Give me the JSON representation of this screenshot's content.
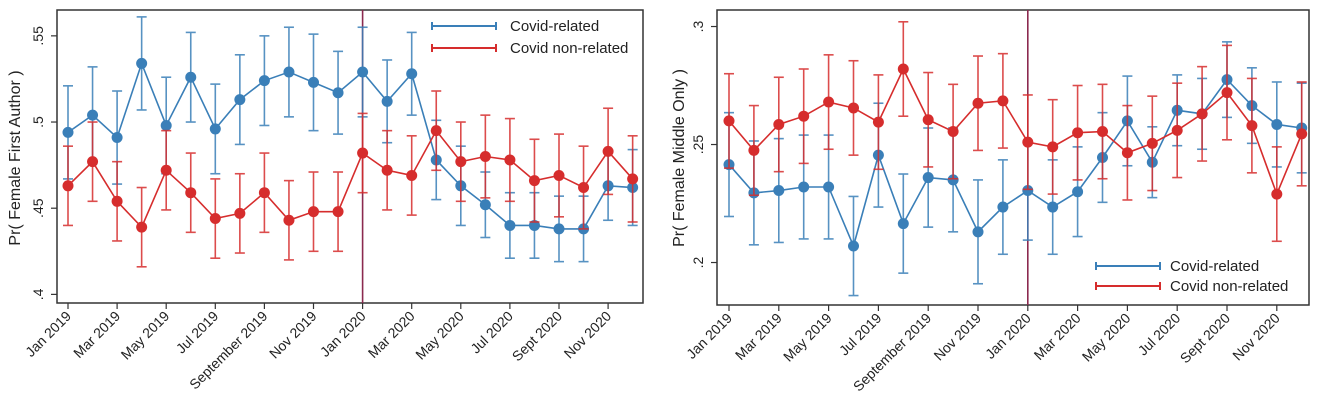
{
  "colors": {
    "covid_related": "#3a7fb8",
    "covid_non_related": "#d62d2d",
    "event_line": "#8b2a4f",
    "frame": "#333333"
  },
  "chart_data": [
    {
      "type": "line",
      "title": "",
      "xlabel": "",
      "ylabel": "Pr( Female First Author )",
      "ylim": [
        0.395,
        0.565
      ],
      "yticks": [
        0.4,
        0.45,
        0.5,
        0.55
      ],
      "ytick_labels": [
        ".4",
        ".45",
        ".5",
        ".55"
      ],
      "x": [
        "Jan 2019",
        "Feb 2019",
        "Mar 2019",
        "Apr 2019",
        "May 2019",
        "Jun 2019",
        "Jul 2019",
        "Aug 2019",
        "Sep 2019",
        "Oct 2019",
        "Nov 2019",
        "Dec 2019",
        "Jan 2020",
        "Feb 2020",
        "Mar 2020",
        "Apr 2020",
        "May 2020",
        "Jun 2020",
        "Jul 2020",
        "Aug 2020",
        "Sep 2020",
        "Oct 2020",
        "Nov 2020",
        "Dec 2020"
      ],
      "xtick_labels": [
        "Jan 2019",
        "Mar 2019",
        "May 2019",
        "Jul 2019",
        "September 2019",
        "Nov 2019",
        "Jan 2020",
        "Mar 2020",
        "May 2020",
        "Jul 2020",
        "Sept 2020",
        "Nov 2020"
      ],
      "xtick_indices": [
        0,
        2,
        4,
        6,
        8,
        10,
        12,
        14,
        16,
        18,
        20,
        22
      ],
      "event_line_at": "Jan 2020",
      "legend": {
        "position": "top-right",
        "entries": [
          "Covid-related",
          "Covid non-related"
        ]
      },
      "grid": false,
      "series": [
        {
          "name": "Covid-related",
          "values": [
            0.494,
            0.504,
            0.491,
            0.534,
            0.498,
            0.526,
            0.496,
            0.513,
            0.524,
            0.529,
            0.523,
            0.517,
            0.529,
            0.512,
            0.528,
            0.478,
            0.463,
            0.452,
            0.44,
            0.44,
            0.438,
            0.438,
            0.463,
            0.462
          ],
          "ci_half": [
            0.027,
            0.028,
            0.027,
            0.027,
            0.028,
            0.026,
            0.026,
            0.026,
            0.026,
            0.026,
            0.028,
            0.024,
            0.026,
            0.024,
            0.024,
            0.023,
            0.023,
            0.019,
            0.019,
            0.019,
            0.019,
            0.019,
            0.02,
            0.022
          ]
        },
        {
          "name": "Covid non-related",
          "values": [
            0.463,
            0.477,
            0.454,
            0.439,
            0.472,
            0.459,
            0.444,
            0.447,
            0.459,
            0.443,
            0.448,
            0.448,
            0.482,
            0.472,
            0.469,
            0.495,
            0.477,
            0.48,
            0.478,
            0.466,
            0.469,
            0.462,
            0.483,
            0.467
          ],
          "ci_half": [
            0.023,
            0.023,
            0.023,
            0.023,
            0.023,
            0.023,
            0.023,
            0.023,
            0.023,
            0.023,
            0.023,
            0.023,
            0.023,
            0.023,
            0.023,
            0.023,
            0.023,
            0.024,
            0.024,
            0.024,
            0.024,
            0.024,
            0.025,
            0.025
          ]
        }
      ]
    },
    {
      "type": "line",
      "title": "",
      "xlabel": "",
      "ylabel": "Pr( Female Middle Only )",
      "ylim": [
        0.182,
        0.307
      ],
      "yticks": [
        0.2,
        0.25,
        0.3
      ],
      "ytick_labels": [
        ".2",
        ".25",
        ".3"
      ],
      "x": [
        "Jan 2019",
        "Feb 2019",
        "Mar 2019",
        "Apr 2019",
        "May 2019",
        "Jun 2019",
        "Jul 2019",
        "Aug 2019",
        "Sep 2019",
        "Oct 2019",
        "Nov 2019",
        "Dec 2019",
        "Jan 2020",
        "Feb 2020",
        "Mar 2020",
        "Apr 2020",
        "May 2020",
        "Jun 2020",
        "Jul 2020",
        "Aug 2020",
        "Sep 2020",
        "Oct 2020",
        "Nov 2020",
        "Dec 2020"
      ],
      "xtick_labels": [
        "Jan 2019",
        "Mar 2019",
        "May 2019",
        "Jul 2019",
        "September 2019",
        "Nov 2019",
        "Jan 2020",
        "Mar 2020",
        "May 2020",
        "Jul 2020",
        "Sept 2020",
        "Nov 2020"
      ],
      "xtick_indices": [
        0,
        2,
        4,
        6,
        8,
        10,
        12,
        14,
        16,
        18,
        20,
        22
      ],
      "event_line_at": "Jan 2020",
      "legend": {
        "position": "bottom-right",
        "entries": [
          "Covid-related",
          "Covid non-related"
        ]
      },
      "grid": false,
      "series": [
        {
          "name": "Covid-related",
          "values": [
            0.2415,
            0.2295,
            0.2305,
            0.232,
            0.232,
            0.207,
            0.2455,
            0.2165,
            0.236,
            0.235,
            0.213,
            0.2235,
            0.2305,
            0.2235,
            0.23,
            0.2445,
            0.26,
            0.2425,
            0.2645,
            0.263,
            0.2775,
            0.2665,
            0.2585,
            0.257
          ],
          "ci_half": [
            0.022,
            0.022,
            0.022,
            0.022,
            0.022,
            0.021,
            0.022,
            0.021,
            0.021,
            0.022,
            0.022,
            0.02,
            0.021,
            0.02,
            0.019,
            0.019,
            0.019,
            0.015,
            0.015,
            0.015,
            0.016,
            0.016,
            0.018,
            0.019
          ]
        },
        {
          "name": "Covid non-related",
          "values": [
            0.26,
            0.2475,
            0.2585,
            0.262,
            0.268,
            0.2655,
            0.2595,
            0.282,
            0.2605,
            0.2555,
            0.2675,
            0.2685,
            0.251,
            0.249,
            0.255,
            0.2555,
            0.2465,
            0.2505,
            0.256,
            0.263,
            0.272,
            0.258,
            0.229,
            0.2545
          ],
          "ci_half": [
            0.02,
            0.019,
            0.02,
            0.02,
            0.02,
            0.02,
            0.02,
            0.02,
            0.02,
            0.02,
            0.02,
            0.02,
            0.02,
            0.02,
            0.02,
            0.02,
            0.02,
            0.02,
            0.02,
            0.02,
            0.02,
            0.02,
            0.02,
            0.022
          ]
        }
      ]
    }
  ]
}
